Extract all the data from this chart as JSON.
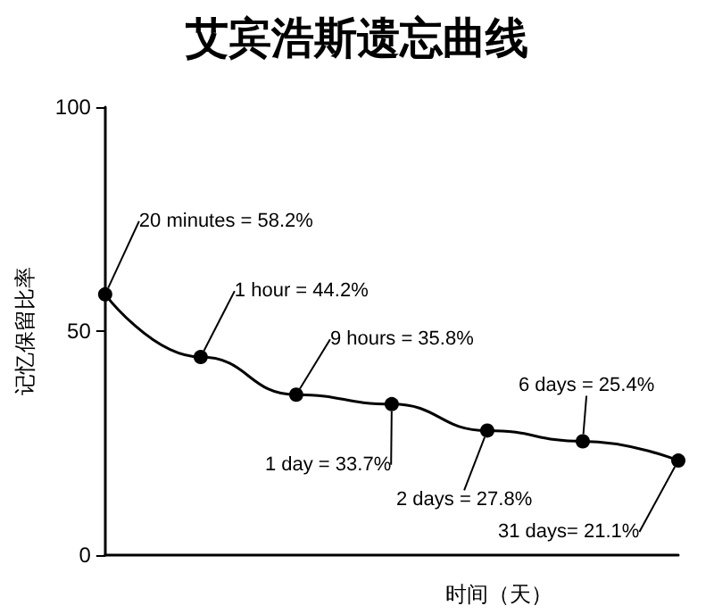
{
  "chart_data": {
    "type": "line",
    "title": "艾宾浩斯遗忘曲线",
    "xlabel": "时间（天）",
    "ylabel": "记忆保留比率",
    "categories": [
      null,
      null,
      null,
      null,
      null,
      null,
      null
    ],
    "series": [
      {
        "color": "#000000",
        "values": [
          58.2,
          44.2,
          35.8,
          33.7,
          27.8,
          25.4,
          21.1
        ],
        "value_labels": [
          "20 minutes = 58.2%",
          "1 hour = 44.2%",
          "9 hours = 35.8%",
          "1 day = 33.7%",
          "2 days = 27.8%",
          "6 days = 25.4%",
          "31 days= 21.1%"
        ]
      }
    ],
    "ylim": [
      0,
      100
    ],
    "yticks": [
      0,
      50,
      100
    ],
    "grid": false,
    "marker": "circle",
    "line_style": "solid"
  }
}
